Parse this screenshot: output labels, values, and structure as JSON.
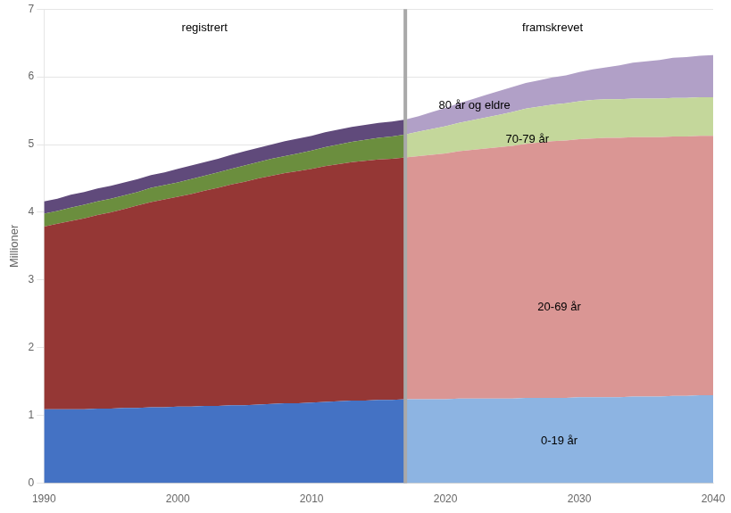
{
  "chart_data": {
    "type": "area",
    "stacked": true,
    "grid": true,
    "ylabel": "Millioner",
    "xlim": [
      1990,
      2040
    ],
    "ylim": [
      0,
      7
    ],
    "xticks": [
      1990,
      2000,
      2010,
      2020,
      2030,
      2040
    ],
    "yticks": [
      0,
      1,
      2,
      3,
      4,
      5,
      6,
      7
    ],
    "series": [
      {
        "color": "#4472C4",
        "x": [
          1990,
          1991,
          1992,
          1993,
          1994,
          1995,
          1996,
          1997,
          1998,
          1999,
          2000,
          2001,
          2002,
          2003,
          2004,
          2005,
          2006,
          2007,
          2008,
          2009,
          2010,
          2011,
          2012,
          2013,
          2014,
          2015,
          2016,
          2017
        ],
        "values": [
          1.09,
          1.09,
          1.09,
          1.09,
          1.1,
          1.1,
          1.11,
          1.11,
          1.12,
          1.12,
          1.13,
          1.13,
          1.14,
          1.14,
          1.15,
          1.15,
          1.16,
          1.17,
          1.18,
          1.18,
          1.19,
          1.2,
          1.21,
          1.22,
          1.22,
          1.23,
          1.23,
          1.24
        ]
      },
      {
        "color": "#953735",
        "x": [
          1990,
          1991,
          1992,
          1993,
          1994,
          1995,
          1996,
          1997,
          1998,
          1999,
          2000,
          2001,
          2002,
          2003,
          2004,
          2005,
          2006,
          2007,
          2008,
          2009,
          2010,
          2011,
          2012,
          2013,
          2014,
          2015,
          2016,
          2017
        ],
        "values": [
          2.7,
          2.74,
          2.78,
          2.82,
          2.86,
          2.9,
          2.94,
          2.99,
          3.03,
          3.07,
          3.1,
          3.14,
          3.18,
          3.22,
          3.26,
          3.3,
          3.34,
          3.37,
          3.4,
          3.43,
          3.45,
          3.48,
          3.5,
          3.52,
          3.54,
          3.55,
          3.56,
          3.57
        ]
      },
      {
        "color": "#6B8E3E",
        "x": [
          1990,
          1991,
          1992,
          1993,
          1994,
          1995,
          1996,
          1997,
          1998,
          1999,
          2000,
          2001,
          2002,
          2003,
          2004,
          2005,
          2006,
          2007,
          2008,
          2009,
          2010,
          2011,
          2012,
          2013,
          2014,
          2015,
          2016,
          2017
        ],
        "values": [
          0.19,
          0.19,
          0.2,
          0.2,
          0.2,
          0.2,
          0.2,
          0.2,
          0.21,
          0.21,
          0.21,
          0.22,
          0.22,
          0.23,
          0.23,
          0.24,
          0.24,
          0.25,
          0.25,
          0.26,
          0.27,
          0.28,
          0.29,
          0.3,
          0.31,
          0.32,
          0.33,
          0.34
        ]
      },
      {
        "color": "#604A7B",
        "x": [
          1990,
          1991,
          1992,
          1993,
          1994,
          1995,
          1996,
          1997,
          1998,
          1999,
          2000,
          2001,
          2002,
          2003,
          2004,
          2005,
          2006,
          2007,
          2008,
          2009,
          2010,
          2011,
          2012,
          2013,
          2014,
          2015,
          2016,
          2017
        ],
        "values": [
          0.18,
          0.18,
          0.19,
          0.19,
          0.19,
          0.19,
          0.19,
          0.19,
          0.19,
          0.19,
          0.2,
          0.2,
          0.2,
          0.2,
          0.21,
          0.21,
          0.21,
          0.21,
          0.22,
          0.22,
          0.22,
          0.22,
          0.22,
          0.22,
          0.22,
          0.22,
          0.22,
          0.22
        ]
      },
      {
        "color": "#8DB4E2",
        "x": [
          2017,
          2018,
          2019,
          2020,
          2021,
          2022,
          2023,
          2024,
          2025,
          2026,
          2027,
          2028,
          2029,
          2030,
          2031,
          2032,
          2033,
          2034,
          2035,
          2036,
          2037,
          2038,
          2039,
          2040
        ],
        "values": [
          1.24,
          1.24,
          1.24,
          1.24,
          1.25,
          1.25,
          1.25,
          1.25,
          1.25,
          1.26,
          1.26,
          1.26,
          1.26,
          1.27,
          1.27,
          1.27,
          1.27,
          1.28,
          1.28,
          1.28,
          1.29,
          1.29,
          1.3,
          1.3
        ]
      },
      {
        "color": "#DA9694",
        "x": [
          2017,
          2018,
          2019,
          2020,
          2021,
          2022,
          2023,
          2024,
          2025,
          2026,
          2027,
          2028,
          2029,
          2030,
          2031,
          2032,
          2033,
          2034,
          2035,
          2036,
          2037,
          2038,
          2039,
          2040
        ],
        "values": [
          3.57,
          3.59,
          3.61,
          3.63,
          3.65,
          3.67,
          3.69,
          3.71,
          3.73,
          3.75,
          3.77,
          3.79,
          3.8,
          3.81,
          3.82,
          3.83,
          3.83,
          3.83,
          3.83,
          3.83,
          3.83,
          3.83,
          3.83,
          3.83
        ]
      },
      {
        "color": "#C4D79B",
        "x": [
          2017,
          2018,
          2019,
          2020,
          2021,
          2022,
          2023,
          2024,
          2025,
          2026,
          2027,
          2028,
          2029,
          2030,
          2031,
          2032,
          2033,
          2034,
          2035,
          2036,
          2037,
          2038,
          2039,
          2040
        ],
        "values": [
          0.34,
          0.36,
          0.38,
          0.4,
          0.42,
          0.44,
          0.46,
          0.48,
          0.5,
          0.52,
          0.53,
          0.54,
          0.55,
          0.56,
          0.57,
          0.57,
          0.57,
          0.57,
          0.57,
          0.57,
          0.57,
          0.57,
          0.57,
          0.57
        ]
      },
      {
        "color": "#B1A0C7",
        "x": [
          2017,
          2018,
          2019,
          2020,
          2021,
          2022,
          2023,
          2024,
          2025,
          2026,
          2027,
          2028,
          2029,
          2030,
          2031,
          2032,
          2033,
          2034,
          2035,
          2036,
          2037,
          2038,
          2039,
          2040
        ],
        "values": [
          0.22,
          0.23,
          0.25,
          0.27,
          0.29,
          0.31,
          0.33,
          0.35,
          0.37,
          0.38,
          0.39,
          0.4,
          0.41,
          0.43,
          0.45,
          0.47,
          0.5,
          0.53,
          0.55,
          0.57,
          0.59,
          0.6,
          0.61,
          0.62
        ]
      }
    ],
    "vline": {
      "x": 2017,
      "color": "#A9A9A9"
    },
    "annotations": [
      {
        "text": "20-69 år",
        "x": 2028.5,
        "y": 2.6,
        "align": "center"
      },
      {
        "text": "0-19 år",
        "x": 2028.5,
        "y": 0.62,
        "align": "center"
      },
      {
        "text": "70-79 år",
        "x": 2024.5,
        "y": 5.07,
        "align": "left"
      },
      {
        "text": "80 år og eldre",
        "x": 2019.5,
        "y": 5.57,
        "align": "left"
      },
      {
        "text": "registrert",
        "x": 2002,
        "y": 6.72,
        "align": "center"
      },
      {
        "text": "framskrevet",
        "x": 2028,
        "y": 6.72,
        "align": "center"
      }
    ]
  }
}
